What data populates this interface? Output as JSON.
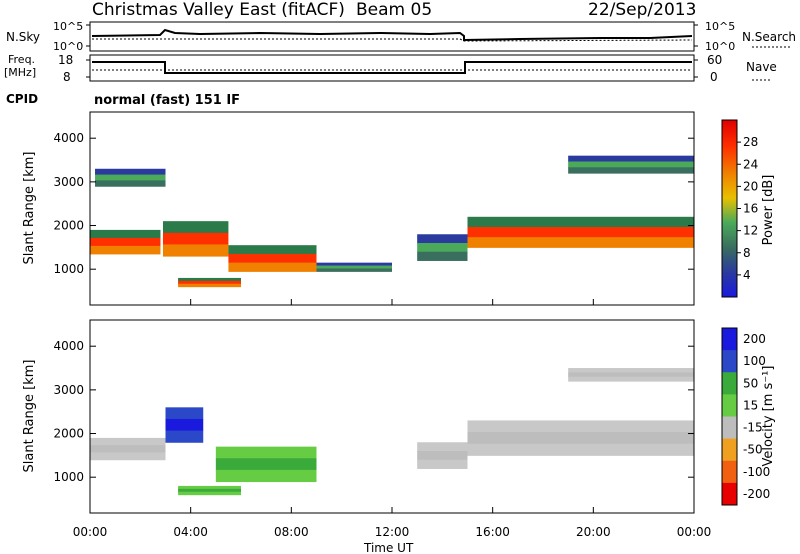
{
  "header": {
    "title": "Christmas Valley East (fitACF)",
    "beam": "Beam 05",
    "date": "22/Sep/2013"
  },
  "top_panels": {
    "nsky_label": "N.Sky",
    "nsky_ticks": [
      "10^5",
      "10^0"
    ],
    "nsearch_label": "N.Search",
    "nsearch_ticks": [
      "10^5",
      "10^0"
    ],
    "freq_label_1": "Freq.",
    "freq_label_2": "[MHz]",
    "freq_ticks": [
      "18",
      "8"
    ],
    "nave_label": "Nave",
    "nave_ticks": [
      "60",
      "0"
    ],
    "cpid_label": "CPID",
    "cpid_value": "normal (fast) 151 IF"
  },
  "chart_data": [
    {
      "type": "heatmap",
      "name": "power",
      "ylabel": "Slant Range [km]",
      "ylim": [
        180,
        4600
      ],
      "yticks": [
        "1000",
        "2000",
        "3000",
        "4000"
      ],
      "xlim": [
        0,
        24
      ],
      "colorbar": {
        "label": "Power [dB]",
        "ticks": [
          "4",
          "8",
          "12",
          "16",
          "20",
          "24",
          "28"
        ],
        "colors": [
          "#1a1adf",
          "#2a3a9e",
          "#3a6e5e",
          "#4aaa5a",
          "#e8c000",
          "#f08000",
          "#ff3000",
          "#e00000"
        ]
      },
      "regions": [
        {
          "t": [
            0.0,
            2.8
          ],
          "r": [
            1350,
            1900
          ],
          "level": "high"
        },
        {
          "t": [
            2.9,
            5.5
          ],
          "r": [
            1300,
            2100
          ],
          "level": "high"
        },
        {
          "t": [
            5.5,
            9.0
          ],
          "r": [
            950,
            1550
          ],
          "level": "high"
        },
        {
          "t": [
            3.5,
            6.0
          ],
          "r": [
            600,
            800
          ],
          "level": "high"
        },
        {
          "t": [
            0.2,
            3.0
          ],
          "r": [
            2900,
            3300
          ],
          "level": "mid"
        },
        {
          "t": [
            15.0,
            24.0
          ],
          "r": [
            1500,
            2200
          ],
          "level": "high"
        },
        {
          "t": [
            19.0,
            24.0
          ],
          "r": [
            3200,
            3600
          ],
          "level": "mid"
        },
        {
          "t": [
            13.0,
            15.0
          ],
          "r": [
            1200,
            1800
          ],
          "level": "mid"
        },
        {
          "t": [
            9.0,
            12.0
          ],
          "r": [
            950,
            1150
          ],
          "level": "mid"
        }
      ]
    },
    {
      "type": "heatmap",
      "name": "velocity",
      "ylabel": "Slant Range [km]",
      "ylim": [
        180,
        4600
      ],
      "yticks": [
        "1000",
        "2000",
        "3000",
        "4000"
      ],
      "xlim": [
        0,
        24
      ],
      "xticks": [
        "00:00",
        "04:00",
        "08:00",
        "12:00",
        "16:00",
        "20:00",
        "00:00"
      ],
      "xlabel": "Time UT",
      "colorbar": {
        "label": "Velocity [m s⁻¹]",
        "ticks": [
          "200",
          "100",
          "50",
          "15",
          "-15",
          "-50",
          "-100",
          "-200"
        ],
        "colors": [
          "#1a1adf",
          "#2a48c8",
          "#3aaa3a",
          "#66cc44",
          "#bdbdbd",
          "#f0a020",
          "#f06010",
          "#e80000"
        ]
      },
      "regions": [
        {
          "t": [
            0.0,
            3.0
          ],
          "r": [
            1400,
            1900
          ],
          "level": "grey"
        },
        {
          "t": [
            5.0,
            9.0
          ],
          "r": [
            900,
            1700
          ],
          "level": "green"
        },
        {
          "t": [
            3.0,
            4.5
          ],
          "r": [
            1800,
            2600
          ],
          "level": "blue"
        },
        {
          "t": [
            15.0,
            24.0
          ],
          "r": [
            1500,
            2300
          ],
          "level": "grey"
        },
        {
          "t": [
            19.0,
            24.0
          ],
          "r": [
            3200,
            3500
          ],
          "level": "grey"
        },
        {
          "t": [
            3.5,
            6.0
          ],
          "r": [
            600,
            800
          ],
          "level": "green"
        },
        {
          "t": [
            13.0,
            15.0
          ],
          "r": [
            1200,
            1800
          ],
          "level": "grey"
        }
      ]
    }
  ]
}
